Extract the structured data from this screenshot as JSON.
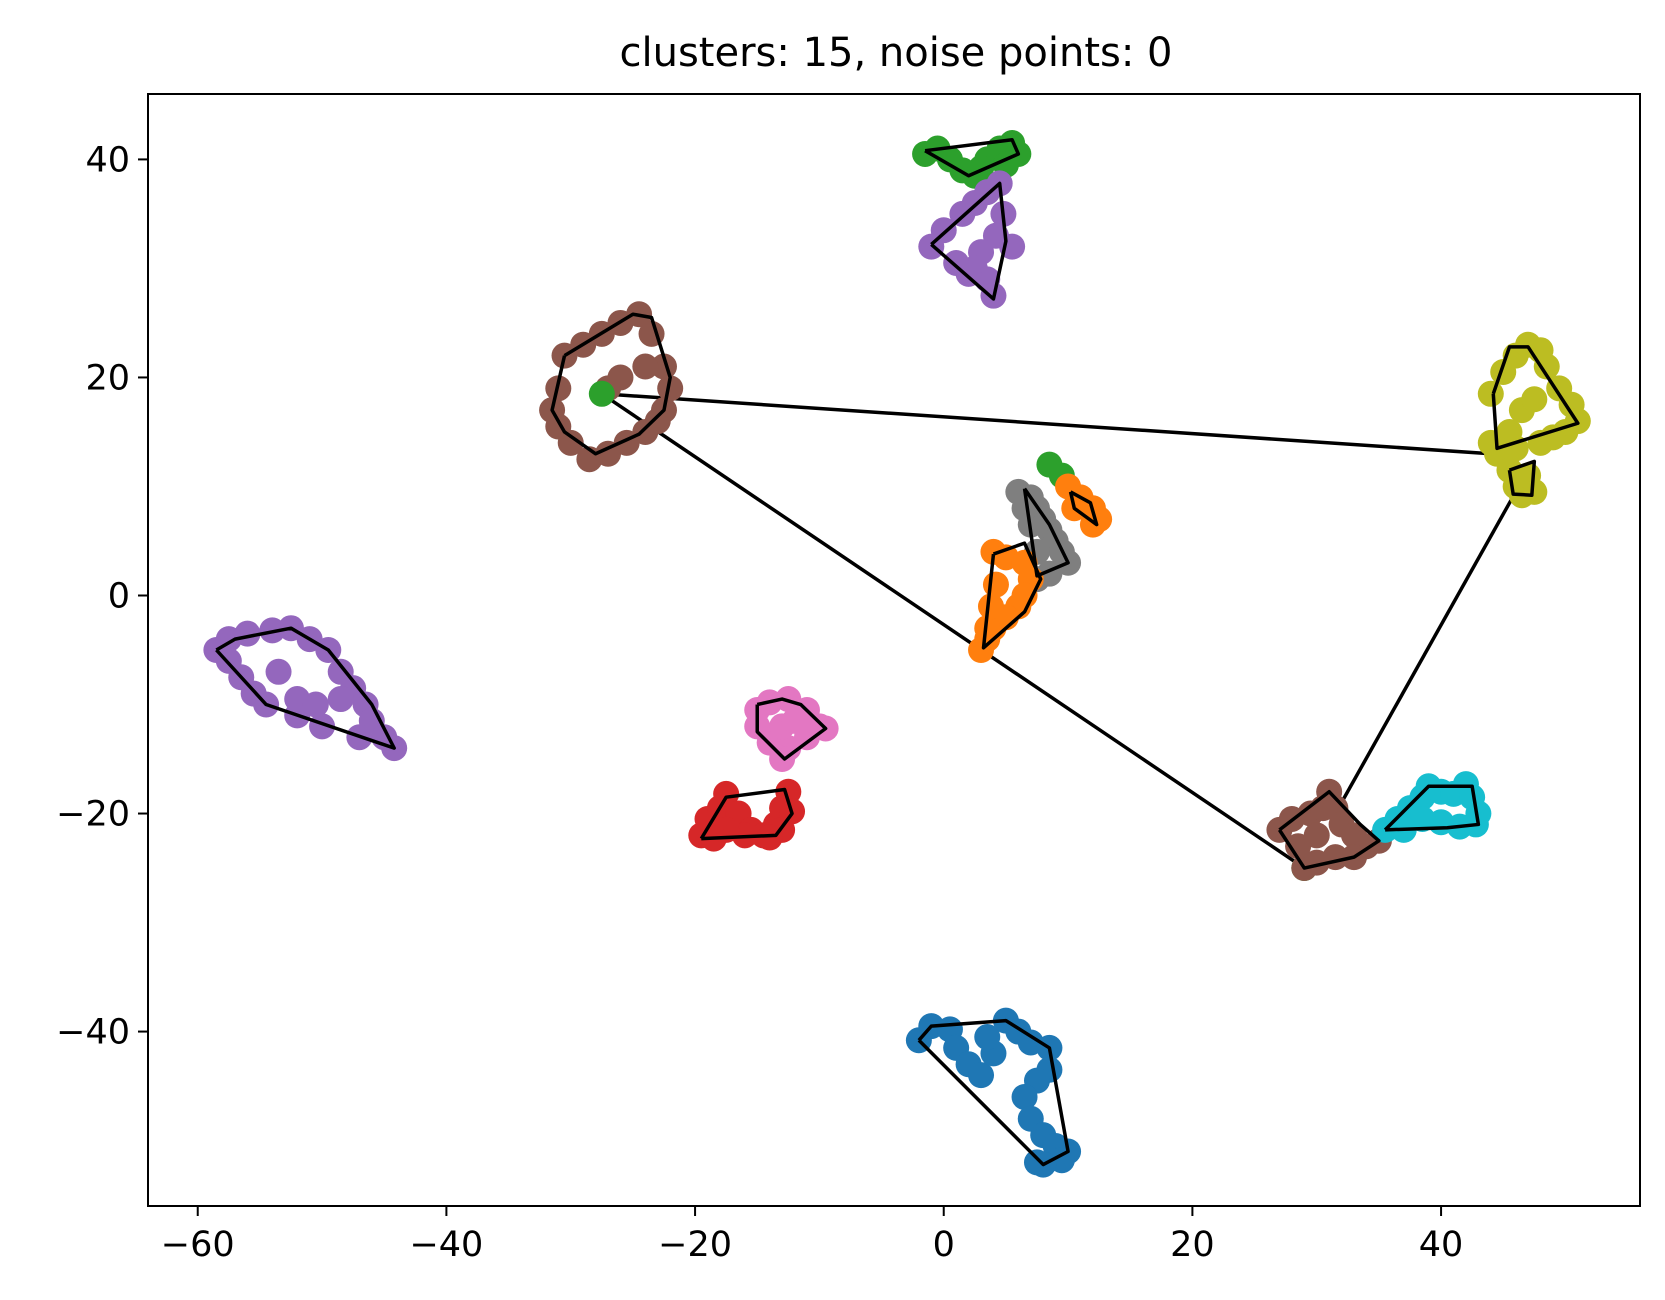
{
  "chart_data": {
    "type": "scatter",
    "title": "clusters: 15, noise points: 0",
    "xlabel": "",
    "ylabel": "",
    "xlim": [
      -64,
      56
    ],
    "ylim": [
      -56,
      46
    ],
    "xticks": [
      -60,
      -40,
      -20,
      0,
      20,
      40
    ],
    "yticks": [
      -40,
      -20,
      0,
      20,
      40
    ],
    "xtick_labels": [
      "−60",
      "−40",
      "−20",
      "0",
      "20",
      "40"
    ],
    "ytick_labels": [
      "−40",
      "−20",
      "0",
      "20",
      "40"
    ],
    "grid": false,
    "legend": "none",
    "marker_color_note": "tab10 palette",
    "clusters": [
      {
        "color": "#1f77b4",
        "points": [
          [
            -2,
            -40.8
          ],
          [
            -1,
            -39.5
          ],
          [
            0.5,
            -39.8
          ],
          [
            1,
            -41.5
          ],
          [
            2,
            -43
          ],
          [
            3,
            -44
          ],
          [
            4,
            -42
          ],
          [
            3.5,
            -40.5
          ],
          [
            5,
            -39
          ],
          [
            6,
            -40
          ],
          [
            7,
            -41
          ],
          [
            8.5,
            -41.5
          ],
          [
            8.5,
            -43.5
          ],
          [
            7.5,
            -44.5
          ],
          [
            6.5,
            -46
          ],
          [
            7,
            -48
          ],
          [
            8,
            -49.5
          ],
          [
            9,
            -50.5
          ],
          [
            10,
            -51
          ],
          [
            9.5,
            -51.8
          ],
          [
            8,
            -52.2
          ],
          [
            7.5,
            -52
          ]
        ],
        "hull": [
          [
            -2,
            -40.8
          ],
          [
            -1,
            -39.5
          ],
          [
            5,
            -39
          ],
          [
            8.5,
            -41.5
          ],
          [
            10,
            -51
          ],
          [
            8,
            -52.2
          ],
          [
            -2,
            -40.8
          ]
        ]
      },
      {
        "color": "#9467bd",
        "points": [
          [
            -58.5,
            -5
          ],
          [
            -57.5,
            -4
          ],
          [
            -56,
            -3.5
          ],
          [
            -54,
            -3.2
          ],
          [
            -52.5,
            -3
          ],
          [
            -51,
            -4
          ],
          [
            -49.5,
            -5
          ],
          [
            -48.5,
            -7
          ],
          [
            -47.5,
            -8.5
          ],
          [
            -46.5,
            -10
          ],
          [
            -46,
            -11.5
          ],
          [
            -45,
            -13
          ],
          [
            -44.2,
            -14
          ],
          [
            -47,
            -13
          ],
          [
            -50,
            -12
          ],
          [
            -52,
            -11
          ],
          [
            -54.5,
            -10
          ],
          [
            -55.5,
            -9
          ],
          [
            -56.5,
            -7.5
          ],
          [
            -57.5,
            -6
          ],
          [
            -53.5,
            -7
          ],
          [
            -52,
            -9.5
          ],
          [
            -50.5,
            -10
          ],
          [
            -48.5,
            -9.5
          ]
        ],
        "hull": [
          [
            -58.5,
            -5
          ],
          [
            -57,
            -4
          ],
          [
            -52.5,
            -3
          ],
          [
            -49.5,
            -5
          ],
          [
            -46,
            -10
          ],
          [
            -44.2,
            -14
          ],
          [
            -54.5,
            -10
          ],
          [
            -58.5,
            -5
          ]
        ]
      },
      {
        "color": "#e377c2",
        "points": [
          [
            -15,
            -10.5
          ],
          [
            -14,
            -9.8
          ],
          [
            -12.5,
            -9.5
          ],
          [
            -11,
            -10.5
          ],
          [
            -10,
            -12
          ],
          [
            -9.5,
            -12.2
          ],
          [
            -11,
            -13
          ],
          [
            -12.5,
            -14
          ],
          [
            -13,
            -15
          ],
          [
            -14,
            -13.5
          ],
          [
            -15,
            -12
          ],
          [
            -13,
            -12
          ],
          [
            -12,
            -11.5
          ]
        ],
        "hull": [
          [
            -15,
            -10
          ],
          [
            -13,
            -9.5
          ],
          [
            -11.5,
            -10
          ],
          [
            -9.5,
            -12.2
          ],
          [
            -12.8,
            -15
          ],
          [
            -15,
            -12.5
          ],
          [
            -15,
            -10
          ]
        ]
      },
      {
        "color": "#d62728",
        "points": [
          [
            -19.5,
            -22
          ],
          [
            -19,
            -20.5
          ],
          [
            -18,
            -19.5
          ],
          [
            -17.5,
            -18.2
          ],
          [
            -16.5,
            -20
          ],
          [
            -15.5,
            -21.5
          ],
          [
            -14.5,
            -22
          ],
          [
            -13.5,
            -21
          ],
          [
            -13,
            -19.5
          ],
          [
            -12.5,
            -18
          ],
          [
            -12.2,
            -19.8
          ],
          [
            -13,
            -21.5
          ],
          [
            -14,
            -22.2
          ],
          [
            -16,
            -22
          ],
          [
            -17.5,
            -21.5
          ],
          [
            -18.5,
            -22.3
          ]
        ],
        "hull": [
          [
            -19.5,
            -22.3
          ],
          [
            -17.5,
            -18.5
          ],
          [
            -12.8,
            -17.8
          ],
          [
            -12.2,
            -20
          ],
          [
            -13.5,
            -22
          ],
          [
            -19.5,
            -22.3
          ]
        ]
      },
      {
        "color": "#2ca02c",
        "points": [
          [
            -1.5,
            40.5
          ],
          [
            -0.5,
            41
          ],
          [
            0.5,
            40
          ],
          [
            1.5,
            39
          ],
          [
            2.5,
            38.5
          ],
          [
            3.5,
            40
          ],
          [
            4.5,
            41
          ],
          [
            5.5,
            41.5
          ],
          [
            6,
            40.5
          ],
          [
            5,
            39.5
          ],
          [
            3,
            39.2
          ]
        ],
        "hull": [
          [
            -1.5,
            40.8
          ],
          [
            5.5,
            41.8
          ],
          [
            6,
            40.5
          ],
          [
            2,
            38.5
          ],
          [
            -1.5,
            40.8
          ]
        ]
      },
      {
        "color": "#9467bd",
        "points": [
          [
            -1,
            32
          ],
          [
            0,
            33.5
          ],
          [
            1.5,
            35
          ],
          [
            2.5,
            36
          ],
          [
            3.5,
            37
          ],
          [
            4.5,
            37.8
          ],
          [
            4.8,
            35
          ],
          [
            4.2,
            33
          ],
          [
            5.5,
            32
          ],
          [
            3,
            31.5
          ],
          [
            2.5,
            30
          ],
          [
            3.5,
            29
          ],
          [
            4,
            27.5
          ],
          [
            2,
            29.5
          ],
          [
            1,
            30.5
          ]
        ],
        "hull": [
          [
            -1,
            32.2
          ],
          [
            4.5,
            37.8
          ],
          [
            5,
            32.5
          ],
          [
            4,
            27.2
          ],
          [
            -1,
            32.2
          ]
        ]
      },
      {
        "color": "#8c564b",
        "points": [
          [
            -30.5,
            22
          ],
          [
            -29,
            23
          ],
          [
            -27.5,
            24
          ],
          [
            -26,
            25
          ],
          [
            -24.5,
            25.8
          ],
          [
            -23.5,
            24
          ],
          [
            -22.5,
            21
          ],
          [
            -22,
            19
          ],
          [
            -22.5,
            17
          ],
          [
            -23,
            16
          ],
          [
            -24,
            15
          ],
          [
            -25.5,
            14
          ],
          [
            -27,
            13
          ],
          [
            -28.5,
            12.5
          ],
          [
            -30,
            14
          ],
          [
            -31,
            15.5
          ],
          [
            -31.5,
            17
          ],
          [
            -31,
            19
          ],
          [
            -27,
            19
          ],
          [
            -26,
            20
          ],
          [
            -24,
            21
          ]
        ],
        "hull": [
          [
            -30.5,
            22
          ],
          [
            -25,
            25.8
          ],
          [
            -23.5,
            25.5
          ],
          [
            -22,
            20
          ],
          [
            -22.5,
            17
          ],
          [
            -24.5,
            14.8
          ],
          [
            -28,
            13
          ],
          [
            -30.5,
            15
          ],
          [
            -31.5,
            17
          ],
          [
            -30.5,
            22
          ]
        ]
      },
      {
        "color": "#2ca02c",
        "points": [
          [
            -27.5,
            18.5
          ],
          [
            8.5,
            12
          ],
          [
            9.5,
            11
          ],
          [
            29,
            -25
          ]
        ],
        "hull": []
      },
      {
        "color": "#7f7f7f",
        "points": [
          [
            6,
            9.5
          ],
          [
            7,
            9
          ],
          [
            7.5,
            8
          ],
          [
            8,
            7
          ],
          [
            8.5,
            6
          ],
          [
            9,
            5
          ],
          [
            9.5,
            4
          ],
          [
            10,
            3
          ],
          [
            8.5,
            2
          ],
          [
            7.5,
            1.5
          ],
          [
            7.5,
            4
          ],
          [
            7,
            6.5
          ],
          [
            6.5,
            8
          ]
        ],
        "hull": [
          [
            6.5,
            9.8
          ],
          [
            8.5,
            6.5
          ],
          [
            10,
            3
          ],
          [
            7.5,
            1.8
          ],
          [
            6.5,
            9.8
          ]
        ]
      },
      {
        "color": "#ff7f0e",
        "points": [
          [
            10,
            10
          ],
          [
            11,
            9
          ],
          [
            12,
            8
          ],
          [
            12.5,
            7
          ],
          [
            12,
            6.5
          ],
          [
            10.5,
            8
          ],
          [
            4,
            4
          ],
          [
            5,
            3.5
          ],
          [
            6.5,
            3
          ],
          [
            7,
            1.5
          ],
          [
            6.5,
            0
          ],
          [
            6,
            -1
          ],
          [
            5,
            -2
          ],
          [
            4,
            -3
          ],
          [
            3.5,
            -4
          ],
          [
            3,
            -5
          ],
          [
            3.5,
            -3
          ],
          [
            3.8,
            -1
          ],
          [
            4.2,
            1
          ]
        ],
        "hull": [
          [
            10.2,
            9.5
          ],
          [
            11.8,
            8.5
          ],
          [
            12.3,
            6.5
          ],
          [
            10.5,
            8
          ],
          [
            10.2,
            9.5
          ]
        ],
        "hull2": [
          [
            4,
            3.8
          ],
          [
            6.5,
            4.8
          ],
          [
            7.8,
            1.5
          ],
          [
            6.5,
            -1.5
          ],
          [
            3.2,
            -4.8
          ],
          [
            4,
            3.8
          ]
        ]
      },
      {
        "color": "#bcbd22",
        "points": [
          [
            44,
            18.5
          ],
          [
            45,
            20.5
          ],
          [
            46,
            22
          ],
          [
            47,
            23
          ],
          [
            48,
            22.5
          ],
          [
            48.5,
            21
          ],
          [
            49.5,
            19
          ],
          [
            50.5,
            17.5
          ],
          [
            51,
            16
          ],
          [
            50,
            15
          ],
          [
            49,
            14.5
          ],
          [
            48,
            14
          ],
          [
            46,
            13.5
          ],
          [
            44.5,
            13
          ],
          [
            44,
            14
          ],
          [
            45.5,
            15
          ],
          [
            46.5,
            17
          ],
          [
            47.5,
            18
          ],
          [
            45.5,
            11.5
          ],
          [
            46,
            10
          ],
          [
            46.5,
            9.2
          ],
          [
            47.5,
            9.5
          ],
          [
            47,
            11
          ]
        ],
        "hull": [
          [
            44.2,
            18.5
          ],
          [
            45.5,
            22.8
          ],
          [
            47,
            22.8
          ],
          [
            51,
            15.8
          ],
          [
            44.5,
            13.5
          ],
          [
            44.2,
            18.5
          ]
        ],
        "hull2": [
          [
            45.5,
            11.5
          ],
          [
            47.5,
            12.3
          ],
          [
            47.3,
            9.2
          ],
          [
            45.8,
            9.3
          ],
          [
            45.5,
            11.5
          ]
        ]
      },
      {
        "color": "#8c564b",
        "points": [
          [
            27,
            -21.5
          ],
          [
            28,
            -20.5
          ],
          [
            29.5,
            -20
          ],
          [
            30.5,
            -19.5
          ],
          [
            31,
            -18
          ],
          [
            31.5,
            -19.5
          ],
          [
            32,
            -21
          ],
          [
            33,
            -22
          ],
          [
            34,
            -23
          ],
          [
            35,
            -22.5
          ],
          [
            33,
            -24
          ],
          [
            31.5,
            -24
          ],
          [
            30,
            -24.5
          ],
          [
            29,
            -25
          ],
          [
            28.5,
            -23
          ],
          [
            30,
            -22
          ]
        ],
        "hull": [
          [
            27,
            -21.5
          ],
          [
            31,
            -18
          ],
          [
            33.5,
            -21
          ],
          [
            35,
            -22.5
          ],
          [
            33,
            -24
          ],
          [
            29,
            -25
          ],
          [
            27,
            -21.5
          ]
        ]
      },
      {
        "color": "#17becf",
        "points": [
          [
            35.5,
            -21.5
          ],
          [
            36.5,
            -20.5
          ],
          [
            37.5,
            -19.5
          ],
          [
            38.5,
            -18.5
          ],
          [
            39,
            -17.5
          ],
          [
            40,
            -18
          ],
          [
            41,
            -18.2
          ],
          [
            42,
            -17.3
          ],
          [
            42.5,
            -18.5
          ],
          [
            43,
            -20
          ],
          [
            42.8,
            -21
          ],
          [
            41.5,
            -21.2
          ],
          [
            40,
            -20.8
          ],
          [
            38.5,
            -20.5
          ],
          [
            37,
            -21.5
          ]
        ],
        "hull": [
          [
            35.5,
            -21.5
          ],
          [
            39,
            -17.5
          ],
          [
            42.5,
            -17.5
          ],
          [
            43,
            -21
          ],
          [
            40.5,
            -21.3
          ],
          [
            35.5,
            -21.5
          ]
        ]
      }
    ],
    "connector_lines": [
      [
        [
          -27.5,
          18.5
        ],
        [
          44,
          13
        ]
      ],
      [
        [
          -27.5,
          18.5
        ],
        [
          29,
          -25
        ]
      ],
      [
        [
          46,
          9.5
        ],
        [
          31.5,
          -20
        ]
      ]
    ]
  }
}
